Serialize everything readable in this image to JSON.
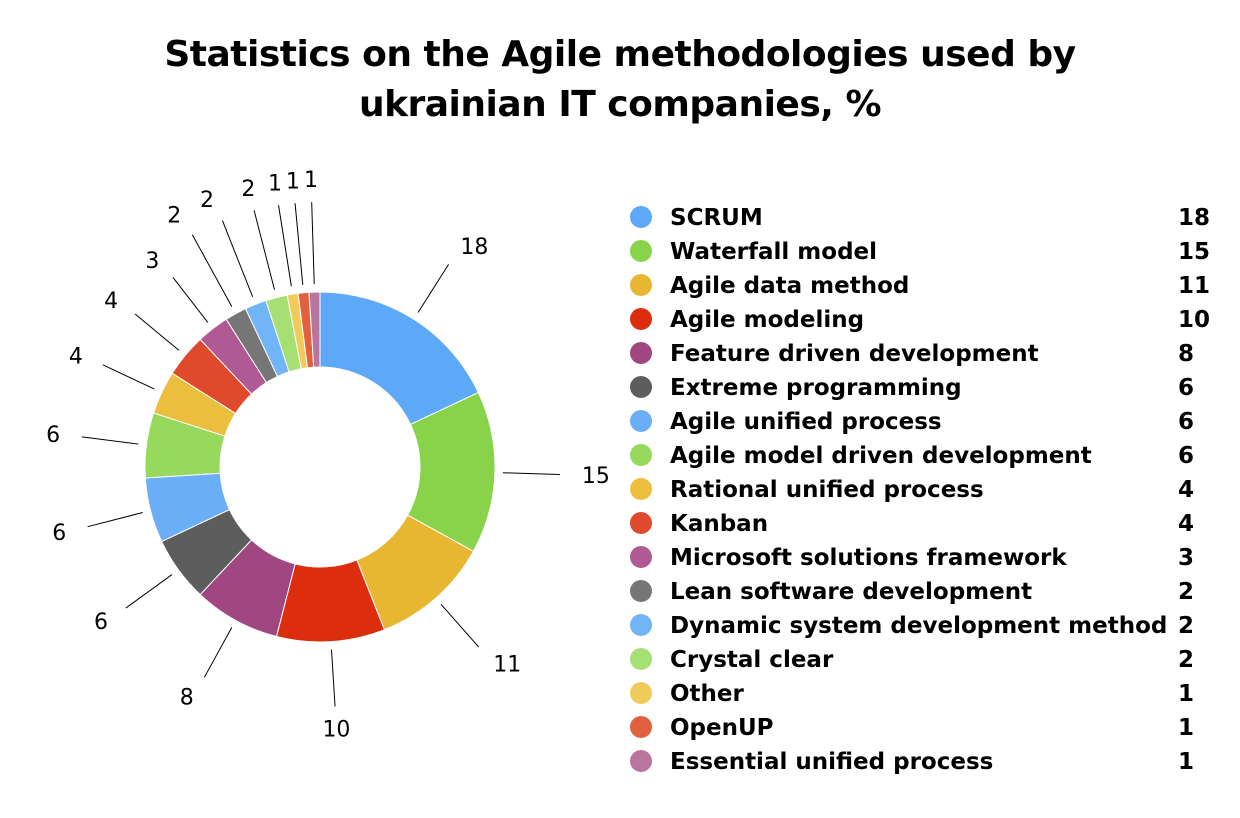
{
  "chart_data": {
    "type": "pie",
    "variant": "donut",
    "title_lines": [
      "Statistics on the Agile methodologies used by",
      "ukrainian IT companies, %"
    ],
    "legend_position": "right",
    "series": [
      {
        "name": "SCRUM",
        "value": 18,
        "label": "18",
        "color": "#5ea8f8"
      },
      {
        "name": "Waterfall model",
        "value": 15,
        "label": "15",
        "color": "#89d34a"
      },
      {
        "name": "Agile data method",
        "value": 11,
        "label": "11",
        "color": "#e8b732"
      },
      {
        "name": "Agile modeling",
        "value": 10,
        "label": "10",
        "color": "#dc2e0e"
      },
      {
        "name": "Feature driven development",
        "value": 8,
        "label": "8",
        "color": "#a04681"
      },
      {
        "name": "Extreme programming",
        "value": 6,
        "label": "6",
        "color": "#5d5d5d"
      },
      {
        "name": "Agile unified process",
        "value": 6,
        "label": "6",
        "color": "#6aaef8"
      },
      {
        "name": "Agile model driven development",
        "value": 6,
        "label": "6",
        "color": "#96d95c"
      },
      {
        "name": "Rational unified process",
        "value": 4,
        "label": "4",
        "color": "#ebbe3e"
      },
      {
        "name": "Kanban",
        "value": 4,
        "label": "4",
        "color": "#df4a2c"
      },
      {
        "name": "Microsoft solutions framework",
        "value": 3,
        "label": "3",
        "color": "#b05a95"
      },
      {
        "name": "Lean software development",
        "value": 2,
        "label": "2",
        "color": "#767676"
      },
      {
        "name": "Dynamic system development method",
        "value": 2,
        "label": "2",
        "color": "#72b5f7"
      },
      {
        "name": "Crystal clear",
        "value": 2,
        "label": "2",
        "color": "#a6df72"
      },
      {
        "name": "Other",
        "value": 1,
        "label": "1",
        "color": "#f0cb5a"
      },
      {
        "name": "OpenUP",
        "value": 1,
        "label": "1",
        "color": "#e1603f"
      },
      {
        "name": "Essential unified process",
        "value": 1,
        "label": "1",
        "color": "#b9759d"
      }
    ]
  }
}
